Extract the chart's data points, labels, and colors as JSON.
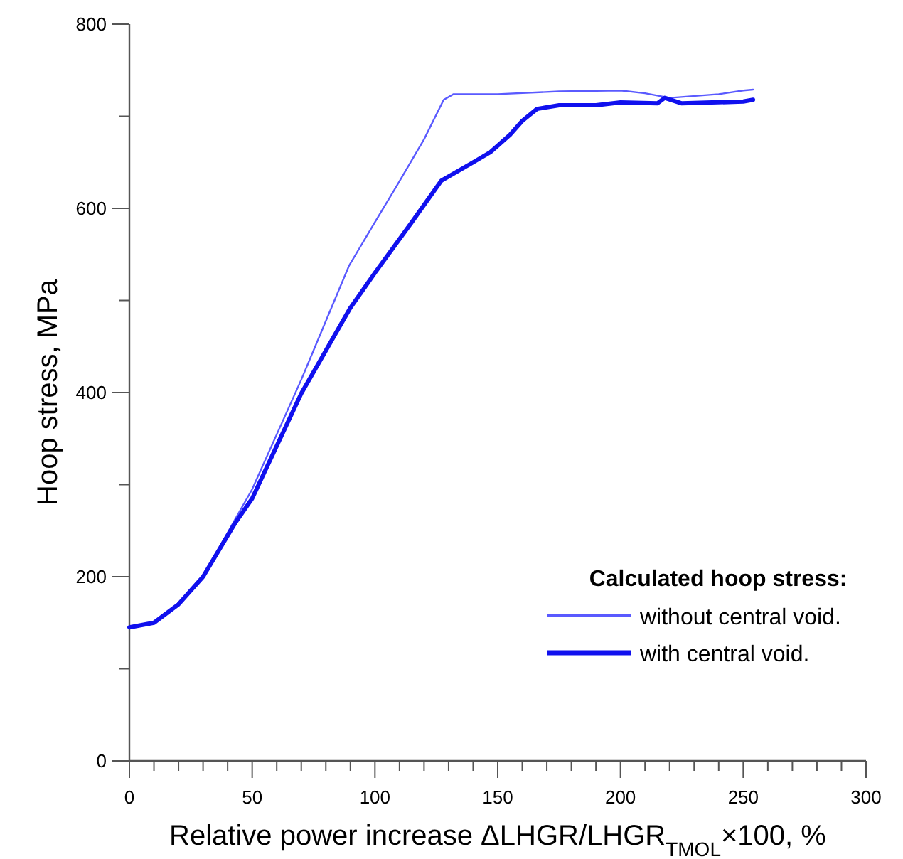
{
  "chart_data": {
    "type": "line",
    "xlabel": "Relative power increase ΔLHGR/LHGR$_{TMOL}$×100, %",
    "ylabel": "Hoop stress, MPa",
    "legend_title": "Calculated hoop stress:",
    "legend": "bottom right",
    "grid": false,
    "marker": "none",
    "line_style": "solid",
    "xlim": [
      0,
      300
    ],
    "ylim": [
      0,
      800
    ],
    "xticks": [
      0,
      {
        "value": 10,
        "label": null
      },
      {
        "value": 20,
        "label": null
      },
      {
        "value": 30,
        "label": null
      },
      {
        "value": 40,
        "label": null
      },
      50,
      {
        "value": 60,
        "label": null
      },
      {
        "value": 70,
        "label": null
      },
      {
        "value": 80,
        "label": null
      },
      {
        "value": 90,
        "label": null
      },
      100,
      {
        "value": 110,
        "label": null
      },
      {
        "value": 120,
        "label": null
      },
      {
        "value": 130,
        "label": null
      },
      {
        "value": 140,
        "label": null
      },
      150,
      {
        "value": 160,
        "label": null
      },
      {
        "value": 170,
        "label": null
      },
      {
        "value": 180,
        "label": null
      },
      {
        "value": 190,
        "label": null
      },
      200,
      {
        "value": 210,
        "label": null
      },
      {
        "value": 220,
        "label": null
      },
      {
        "value": 230,
        "label": null
      },
      {
        "value": 240,
        "label": null
      },
      250,
      {
        "value": 260,
        "label": null
      },
      {
        "value": 270,
        "label": null
      },
      {
        "value": 280,
        "label": null
      },
      {
        "value": 290,
        "label": null
      },
      300
    ],
    "yticks": [
      0,
      {
        "value": 100,
        "label": null
      },
      200,
      {
        "value": 300,
        "label": null
      },
      400,
      {
        "value": 500,
        "label": null
      },
      600,
      {
        "value": 700,
        "label": null
      },
      800
    ],
    "series": [
      {
        "name": "without central void.",
        "color": "#5a5aff",
        "x": [
          0,
          10,
          20,
          30,
          43,
          50,
          70,
          89.5,
          100,
          109,
          120,
          128,
          132,
          150,
          175,
          200,
          210,
          220,
          240,
          250,
          254
        ],
        "values": [
          145,
          150,
          170,
          200,
          262,
          295,
          414,
          538,
          585,
          625,
          675,
          718,
          724,
          724,
          727,
          728,
          725,
          720,
          724,
          728,
          729
        ]
      },
      {
        "name": "with central void.",
        "color": "#1010ee",
        "x": [
          0,
          10,
          20,
          30,
          43,
          50,
          70,
          90,
          100,
          115,
          127,
          140,
          147,
          155,
          160,
          166,
          175,
          190,
          200,
          215,
          218,
          225,
          250,
          254
        ],
        "values": [
          145,
          150,
          170,
          200,
          258,
          285,
          399,
          492,
          530,
          585,
          630,
          650,
          661,
          680,
          695,
          708,
          712,
          712,
          715,
          714,
          720,
          714,
          716,
          718
        ]
      }
    ]
  }
}
